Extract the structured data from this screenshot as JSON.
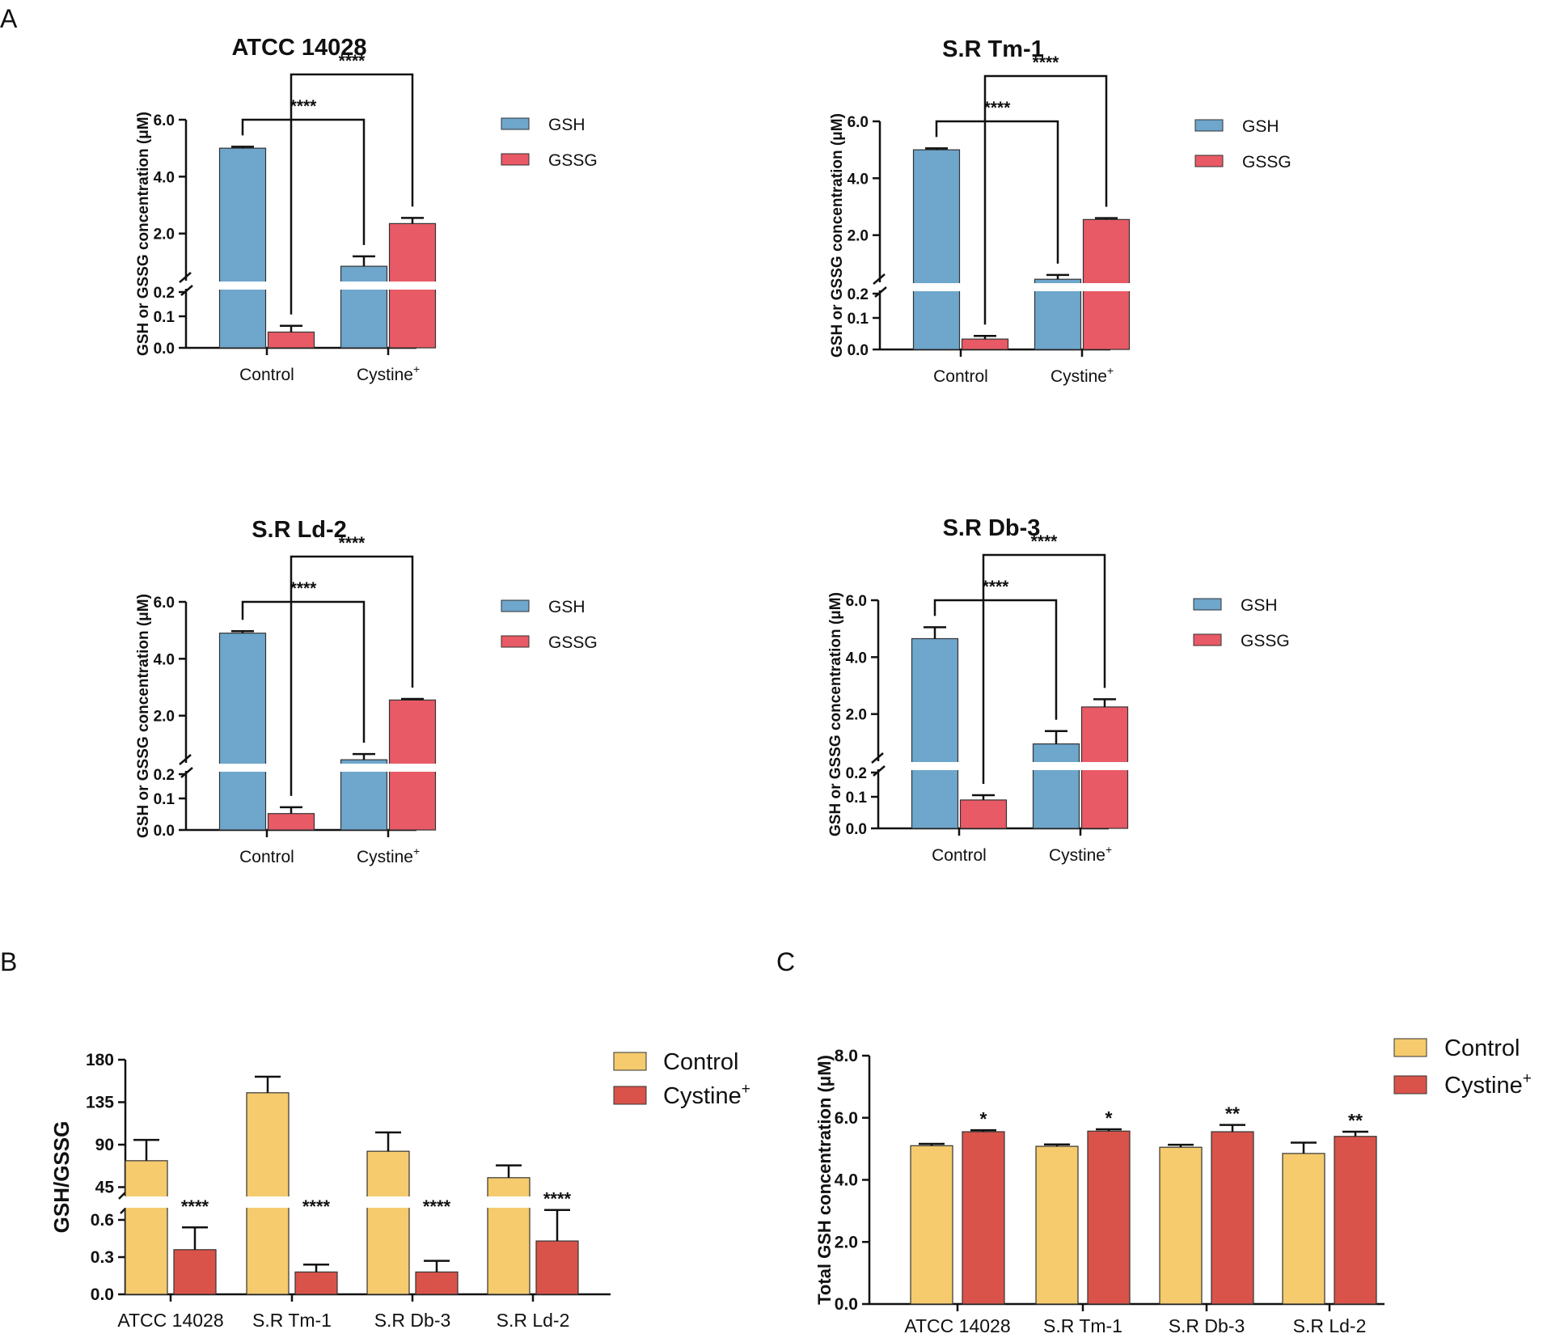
{
  "panel_labels": [
    "A",
    "B",
    "C"
  ],
  "colors": {
    "gsh": "#6EA6CC",
    "gssg": "#E85A66",
    "control": "#F5CB6E",
    "cystine": "#D9534A"
  },
  "chart_data": [
    {
      "id": "A1",
      "type": "bar",
      "title": "ATCC 14028",
      "ylabel": "GSH or GSSG concentration (μM)",
      "categories": [
        "Control",
        "Cystine+"
      ],
      "x_tick_labels": [
        {
          "main": "Control",
          "sup": ""
        },
        {
          "main": "Cystine",
          "sup": "+"
        }
      ],
      "series": [
        {
          "name": "GSH",
          "values": [
            5.0,
            0.85
          ],
          "errors": [
            0.05,
            0.35
          ]
        },
        {
          "name": "GSSG",
          "values": [
            0.05,
            2.35
          ],
          "errors": [
            0.02,
            0.2
          ]
        }
      ],
      "axis_break": {
        "lower_range": [
          0,
          0.2
        ],
        "upper_range": [
          0.2,
          6.0
        ]
      },
      "y_ticks": [
        "0.0",
        "0.1",
        "0.2",
        "2.0",
        "4.0",
        "6.0"
      ],
      "significance": [
        "****",
        "****"
      ]
    },
    {
      "id": "A2",
      "type": "bar",
      "title": "S.R Tm-1",
      "ylabel": "GSH or GSSG concentration (μM)",
      "categories": [
        "Control",
        "Cystine+"
      ],
      "x_tick_labels": [
        {
          "main": "Control",
          "sup": ""
        },
        {
          "main": "Cystine",
          "sup": "+"
        }
      ],
      "series": [
        {
          "name": "GSH",
          "values": [
            5.0,
            0.45
          ],
          "errors": [
            0.05,
            0.15
          ]
        },
        {
          "name": "GSSG",
          "values": [
            0.033,
            2.55
          ],
          "errors": [
            0.01,
            0.05
          ]
        }
      ],
      "axis_break": {
        "lower_range": [
          0,
          0.2
        ],
        "upper_range": [
          0.2,
          6.0
        ]
      },
      "y_ticks": [
        "0.0",
        "0.1",
        "0.2",
        "2.0",
        "4.0",
        "6.0"
      ],
      "significance": [
        "****",
        "****"
      ]
    },
    {
      "id": "A3",
      "type": "bar",
      "title": "S.R Ld-2",
      "ylabel": "GSH or GSSG concentration (μM)",
      "categories": [
        "Control",
        "Cystine+"
      ],
      "x_tick_labels": [
        {
          "main": "Control",
          "sup": ""
        },
        {
          "main": "Cystine",
          "sup": "+"
        }
      ],
      "series": [
        {
          "name": "GSH",
          "values": [
            4.9,
            0.45
          ],
          "errors": [
            0.07,
            0.2
          ]
        },
        {
          "name": "GSSG",
          "values": [
            0.052,
            2.55
          ],
          "errors": [
            0.02,
            0.04
          ]
        }
      ],
      "axis_break": {
        "lower_range": [
          0,
          0.2
        ],
        "upper_range": [
          0.2,
          6.0
        ]
      },
      "y_ticks": [
        "0.0",
        "0.1",
        "0.2",
        "2.0",
        "4.0",
        "6.0"
      ],
      "significance": [
        "****",
        "****"
      ]
    },
    {
      "id": "A4",
      "type": "bar",
      "title": "S.R Db-3",
      "ylabel": "GSH or GSSG concentration (μM)",
      "categories": [
        "Control",
        "Cystine+"
      ],
      "x_tick_labels": [
        {
          "main": "Control",
          "sup": ""
        },
        {
          "main": "Cystine",
          "sup": "+"
        }
      ],
      "series": [
        {
          "name": "GSH",
          "values": [
            4.65,
            0.95
          ],
          "errors": [
            0.4,
            0.45
          ]
        },
        {
          "name": "GSSG",
          "values": [
            0.09,
            2.25
          ],
          "errors": [
            0.015,
            0.27
          ]
        }
      ],
      "axis_break": {
        "lower_range": [
          0,
          0.2
        ],
        "upper_range": [
          0.2,
          6.0
        ]
      },
      "y_ticks": [
        "0.0",
        "0.1",
        "0.2",
        "2.0",
        "4.0",
        "6.0"
      ],
      "significance": [
        "****",
        "****"
      ]
    },
    {
      "id": "B",
      "type": "bar",
      "ylabel": "GSH/GSSG",
      "categories": [
        "ATCC 14028",
        "S.R Tm-1",
        "S.R Db-3",
        "S.R Ld-2"
      ],
      "series": [
        {
          "name": "Control",
          "values": [
            73,
            145,
            83,
            55
          ],
          "errors": [
            22,
            17,
            20,
            13
          ]
        },
        {
          "name": "Cystine+",
          "values": [
            0.36,
            0.18,
            0.18,
            0.43
          ],
          "errors": [
            0.18,
            0.06,
            0.09,
            0.25
          ]
        }
      ],
      "axis_break": {
        "lower_range": [
          0,
          0.75
        ],
        "upper_range": [
          30,
          180
        ]
      },
      "y_ticks": [
        "0.0",
        "0.3",
        "0.6",
        "45",
        "90",
        "135",
        "180"
      ],
      "significance": [
        "****",
        "****",
        "****",
        "****"
      ]
    },
    {
      "id": "C",
      "type": "bar",
      "ylabel": "Total GSH concentration (μM)",
      "categories": [
        "ATCC 14028",
        "S.R Tm-1",
        "S.R Db-3",
        "S.R Ld-2"
      ],
      "series": [
        {
          "name": "Control",
          "values": [
            5.1,
            5.08,
            5.05,
            4.85
          ],
          "errors": [
            0.06,
            0.06,
            0.08,
            0.35
          ]
        },
        {
          "name": "Cystine+",
          "values": [
            5.55,
            5.57,
            5.55,
            5.4
          ],
          "errors": [
            0.05,
            0.06,
            0.22,
            0.15
          ]
        }
      ],
      "ylim": [
        0,
        8
      ],
      "y_ticks": [
        "0.0",
        "2.0",
        "4.0",
        "6.0",
        "8.0"
      ],
      "significance": [
        "*",
        "*",
        "**",
        "**"
      ]
    }
  ]
}
